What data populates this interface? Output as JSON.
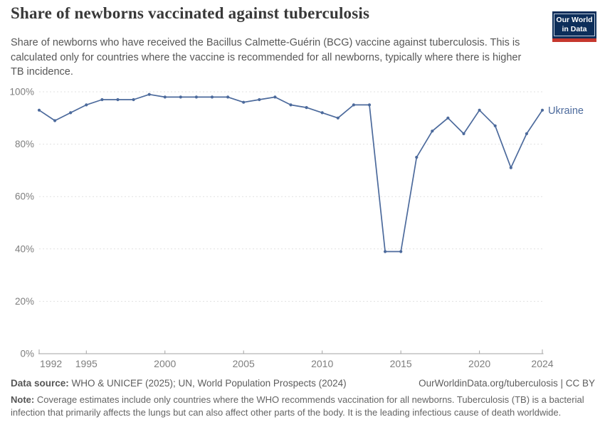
{
  "header": {
    "title": "Share of newborns vaccinated against tuberculosis",
    "subtitle": "Share of newborns who have received the Bacillus Calmette-Guérin (BCG) vaccine against tuberculosis. This is calculated only for countries where the vaccine is recommended for all newborns, typically where there is higher TB incidence.",
    "logo": {
      "line1": "Our World",
      "line2": "in Data",
      "bg_color": "#0d2e5a",
      "stripe_color": "#c5372e"
    }
  },
  "chart_data": {
    "type": "line",
    "title": "Share of newborns vaccinated against tuberculosis",
    "xlabel": "",
    "ylabel": "",
    "xlim": [
      1992,
      2024
    ],
    "ylim": [
      0,
      100
    ],
    "xticks": [
      1992,
      1995,
      2000,
      2005,
      2010,
      2015,
      2020,
      2024
    ],
    "yticks": [
      0,
      20,
      40,
      60,
      80,
      100
    ],
    "y_tick_suffix": "%",
    "grid": "horizontal-dashed",
    "legend_position": "end-of-line-label",
    "colors": {
      "grid": "#e1e1e1",
      "axis": "#a3a3a3",
      "tick_label": "#7e7e7e"
    },
    "series": [
      {
        "name": "Ukraine",
        "color": "#4C6A9C",
        "x": [
          1992,
          1993,
          1994,
          1995,
          1996,
          1997,
          1998,
          1999,
          2000,
          2001,
          2002,
          2003,
          2004,
          2005,
          2006,
          2007,
          2008,
          2009,
          2010,
          2011,
          2012,
          2013,
          2014,
          2015,
          2016,
          2017,
          2018,
          2019,
          2020,
          2021,
          2022,
          2023,
          2024
        ],
        "values": [
          93,
          89,
          92,
          95,
          97,
          97,
          97,
          99,
          98,
          98,
          98,
          98,
          98,
          96,
          97,
          98,
          95,
          94,
          92,
          90,
          95,
          95,
          39,
          39,
          75,
          85,
          90,
          84,
          93,
          87,
          71,
          84,
          93
        ]
      }
    ]
  },
  "footer": {
    "datasource_label": "Data source:",
    "datasource_text": " WHO & UNICEF (2025); UN, World Population Prospects (2024)",
    "link": "OurWorldinData.org/tuberculosis | CC BY",
    "note_label": "Note:",
    "note_text": " Coverage estimates include only countries where the WHO recommends vaccination for all newborns. Tuberculosis (TB) is a bacterial infection that primarily affects the lungs but can also affect other parts of the body. It is the leading infectious cause of death worldwide."
  }
}
